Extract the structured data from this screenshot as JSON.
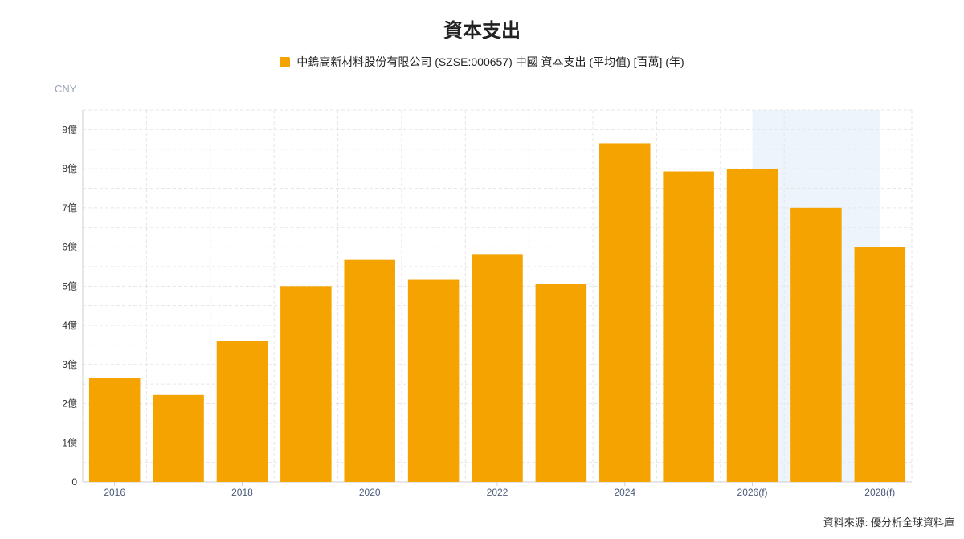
{
  "title": "資本支出",
  "legend": {
    "label": "中鎢高新材料股份有限公司 (SZSE:000657) 中國 資本支出 (平均值) [百萬] (年)",
    "color": "#F5A300"
  },
  "unit_label": "CNY",
  "source": "資料來源: 優分析全球資料庫",
  "chart_data": {
    "type": "bar",
    "categories": [
      "2016",
      "2017",
      "2018",
      "2019",
      "2020",
      "2021",
      "2022",
      "2023",
      "2024",
      "2025",
      "2026(f)",
      "2027(f)",
      "2028(f)"
    ],
    "x_tick_labels": [
      "2016",
      "",
      "2018",
      "",
      "2020",
      "",
      "2022",
      "",
      "2024",
      "",
      "2026(f)",
      "",
      "2028(f)"
    ],
    "series": [
      {
        "values": [
          2.65,
          2.22,
          3.6,
          5.0,
          5.67,
          5.18,
          5.82,
          5.05,
          8.65,
          7.93,
          8.0,
          7.0,
          6.0
        ]
      }
    ],
    "value_unit": "億",
    "ylim": [
      0,
      9.5
    ],
    "y_ticks": [
      {
        "value": 0,
        "label": "0"
      },
      {
        "value": 1,
        "label": "1億"
      },
      {
        "value": 2,
        "label": "2億"
      },
      {
        "value": 3,
        "label": "3億"
      },
      {
        "value": 4,
        "label": "4億"
      },
      {
        "value": 5,
        "label": "5億"
      },
      {
        "value": 6,
        "label": "6億"
      },
      {
        "value": 7,
        "label": "7億"
      },
      {
        "value": 8,
        "label": "8億"
      },
      {
        "value": 9,
        "label": "9億"
      }
    ],
    "forecast_shade": {
      "from": "2026(f)",
      "to": "2027(f)",
      "color": "#EEF4FC"
    },
    "bar_color": "#F5A300",
    "grid": true,
    "legend_position": "top"
  }
}
